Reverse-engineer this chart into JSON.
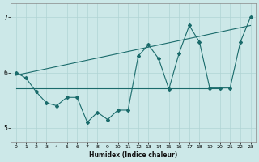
{
  "title": "",
  "xlabel": "Humidex (Indice chaleur)",
  "ylabel": "",
  "bg_color": "#cce8e8",
  "line_color": "#1a6b6b",
  "grid_color": "#b0d4d4",
  "xlim": [
    -0.5,
    23.5
  ],
  "ylim": [
    4.75,
    7.25
  ],
  "yticks": [
    5,
    6,
    7
  ],
  "xticks": [
    0,
    1,
    2,
    3,
    4,
    5,
    6,
    7,
    8,
    9,
    10,
    11,
    12,
    13,
    14,
    15,
    16,
    17,
    18,
    19,
    20,
    21,
    22,
    23
  ],
  "x_data": [
    0,
    1,
    2,
    3,
    4,
    5,
    6,
    7,
    8,
    9,
    10,
    11,
    12,
    13,
    14,
    15,
    16,
    17,
    18,
    19,
    20,
    21,
    22,
    23
  ],
  "y_main": [
    6.0,
    5.9,
    5.65,
    5.45,
    5.4,
    5.55,
    5.55,
    5.1,
    5.28,
    5.15,
    5.32,
    5.32,
    6.3,
    6.5,
    6.25,
    5.7,
    6.35,
    6.85,
    6.55,
    5.72,
    5.72,
    5.72,
    6.55,
    7.0
  ],
  "x_flat": [
    0,
    1,
    2,
    3,
    4,
    5,
    6,
    7,
    8,
    9,
    10,
    11,
    12,
    13,
    14,
    15,
    16,
    17,
    18,
    19,
    20
  ],
  "y_flat": [
    5.72,
    5.72,
    5.72,
    5.72,
    5.72,
    5.72,
    5.72,
    5.72,
    5.72,
    5.72,
    5.72,
    5.72,
    5.72,
    5.72,
    5.72,
    5.72,
    5.72,
    5.72,
    5.72,
    5.72,
    5.72
  ],
  "trend_x": [
    0,
    23
  ],
  "trend_y": [
    5.95,
    6.85
  ]
}
